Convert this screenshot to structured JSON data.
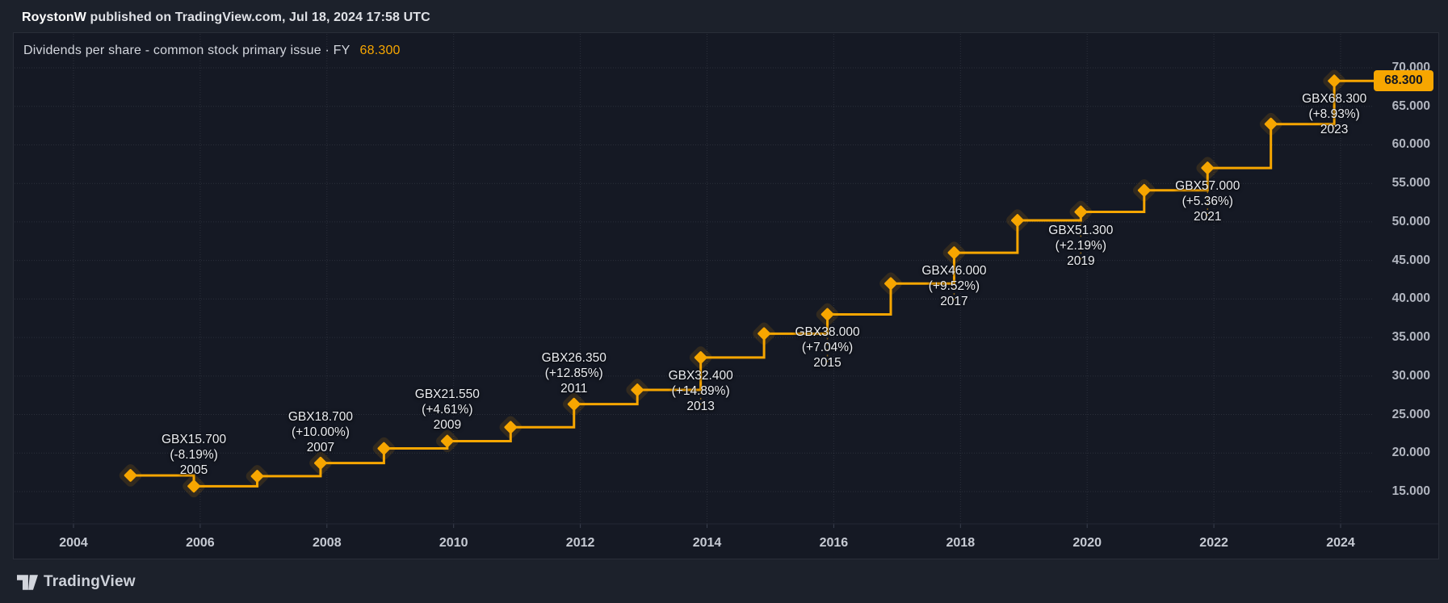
{
  "header": {
    "author": "RoystonW",
    "text": " published on TradingView.com, Jul 18, 2024 17:58 UTC"
  },
  "chart": {
    "title_full": "Dividends per share - common stock primary issue · FY",
    "value": "68.300",
    "badge": "68.300"
  },
  "footer": {
    "brand": "TradingView"
  },
  "colors": {
    "accent": "#f7a600",
    "halo": "rgba(247,166,0,0.13)",
    "chart_background": "#151924",
    "outer_background": "#1c212b",
    "frame": "#2a2e39",
    "grid": "rgba(178,184,200,0.14)",
    "tick": "#3b4150",
    "y_axis_text": "#b2b6c0",
    "x_axis_text": "#c6cad3",
    "annotation_text": "#eceef2",
    "badge_text": "#131722"
  },
  "y_axis": {
    "labels": [
      "70.000",
      "65.000",
      "60.000",
      "55.000",
      "50.000",
      "45.000",
      "40.000",
      "35.000",
      "30.000",
      "25.000",
      "20.000",
      "15.000"
    ],
    "values": [
      70,
      65,
      60,
      55,
      50,
      45,
      40,
      35,
      30,
      25,
      20,
      15
    ]
  },
  "x_axis": {
    "labels": [
      "2004",
      "2006",
      "2008",
      "2010",
      "2012",
      "2014",
      "2016",
      "2018",
      "2020",
      "2022",
      "2024"
    ],
    "years": [
      2004,
      2006,
      2008,
      2010,
      2012,
      2014,
      2016,
      2018,
      2020,
      2022,
      2024
    ]
  },
  "chart_data": {
    "type": "line",
    "style": "step-after-with-diamond-markers",
    "title": "Dividends per share - common stock primary issue · FY",
    "unit": "GBX",
    "last_value": 68.3,
    "ylim": [
      13,
      71.5
    ],
    "xlim_years": [
      2003.1,
      2024.9
    ],
    "grid": true,
    "points": [
      {
        "year": 2004,
        "value": 17.1
      },
      {
        "year": 2005,
        "value": 15.7,
        "label": "GBX15.700",
        "change": "(-8.19%)",
        "year_label": "2005",
        "placement": "above"
      },
      {
        "year": 2006,
        "value": 17.0
      },
      {
        "year": 2007,
        "value": 18.7,
        "label": "GBX18.700",
        "change": "(+10.00%)",
        "year_label": "2007",
        "placement": "above"
      },
      {
        "year": 2008,
        "value": 20.6
      },
      {
        "year": 2009,
        "value": 21.55,
        "label": "GBX21.550",
        "change": "(+4.61%)",
        "year_label": "2009",
        "placement": "above"
      },
      {
        "year": 2010,
        "value": 23.35
      },
      {
        "year": 2011,
        "value": 26.35,
        "label": "GBX26.350",
        "change": "(+12.85%)",
        "year_label": "2011",
        "placement": "above"
      },
      {
        "year": 2012,
        "value": 28.2
      },
      {
        "year": 2013,
        "value": 32.4,
        "label": "GBX32.400",
        "change": "(+14.89%)",
        "year_label": "2013",
        "placement": "below"
      },
      {
        "year": 2014,
        "value": 35.5
      },
      {
        "year": 2015,
        "value": 38.0,
        "label": "GBX38.000",
        "change": "(+7.04%)",
        "year_label": "2015",
        "placement": "below"
      },
      {
        "year": 2016,
        "value": 42.0
      },
      {
        "year": 2017,
        "value": 46.0,
        "label": "GBX46.000",
        "change": "(+9.52%)",
        "year_label": "2017",
        "placement": "below"
      },
      {
        "year": 2018,
        "value": 50.2
      },
      {
        "year": 2019,
        "value": 51.3,
        "label": "GBX51.300",
        "change": "(+2.19%)",
        "year_label": "2019",
        "placement": "below"
      },
      {
        "year": 2020,
        "value": 54.1
      },
      {
        "year": 2021,
        "value": 57.0,
        "label": "GBX57.000",
        "change": "(+5.36%)",
        "year_label": "2021",
        "placement": "below"
      },
      {
        "year": 2022,
        "value": 62.7
      },
      {
        "year": 2023,
        "value": 68.3,
        "label": "GBX68.300",
        "change": "(+8.93%)",
        "year_label": "2023",
        "placement": "below"
      }
    ]
  }
}
